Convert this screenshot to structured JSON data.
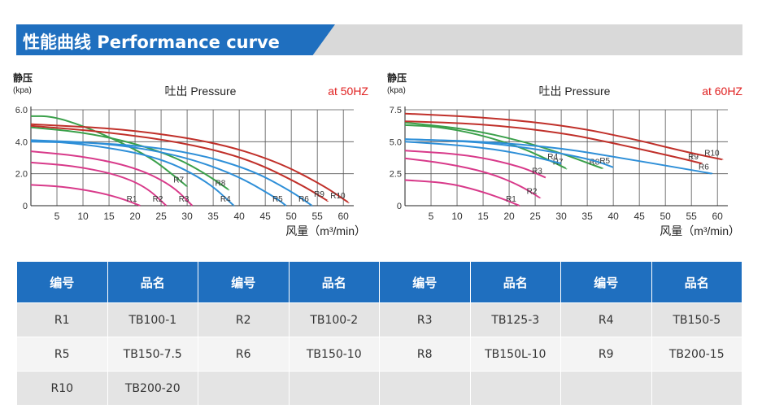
{
  "header": {
    "title": "性能曲线 Performance curve"
  },
  "table": {
    "headers": [
      "编号",
      "品名",
      "编号",
      "品名",
      "编号",
      "品名",
      "编号",
      "品名"
    ],
    "rows": [
      [
        "R1",
        "TB100-1",
        "R2",
        "TB100-2",
        "R3",
        "TB125-3",
        "R4",
        "TB150-5"
      ],
      [
        "R5",
        "TB150-7.5",
        "R6",
        "TB150-10",
        "R8",
        "TB150L-10",
        "R9",
        "TB200-15"
      ],
      [
        "R10",
        "TB200-20",
        "",
        "",
        "",
        "",
        "",
        ""
      ]
    ]
  },
  "chart_data": [
    {
      "type": "line",
      "title": "吐出 Pressure",
      "freq_label": "at 50HZ",
      "ylabel": "静压",
      "yunit": "(kpa)",
      "xlabel": "风量（m³/min）",
      "x_ticks": [
        5,
        10,
        15,
        20,
        25,
        30,
        35,
        40,
        45,
        50,
        55,
        60
      ],
      "y_ticks": [
        "0",
        "2.0",
        "4.0",
        "6.0"
      ],
      "xlim": [
        0,
        62
      ],
      "ylim": [
        0,
        6
      ],
      "grid": true,
      "series": [
        {
          "name": "R1",
          "color": "#d83a8a",
          "points": [
            [
              0,
              1.3
            ],
            [
              6,
              1.2
            ],
            [
              12,
              0.9
            ],
            [
              17,
              0.5
            ],
            [
              21,
              0
            ]
          ]
        },
        {
          "name": "R2",
          "color": "#d83a8a",
          "points": [
            [
              0,
              2.7
            ],
            [
              8,
              2.5
            ],
            [
              16,
              2.0
            ],
            [
              22,
              1.2
            ],
            [
              26,
              0
            ]
          ]
        },
        {
          "name": "R3",
          "color": "#d83a8a",
          "points": [
            [
              0,
              3.4
            ],
            [
              10,
              3.1
            ],
            [
              20,
              2.4
            ],
            [
              27,
              1.3
            ],
            [
              31,
              0
            ]
          ]
        },
        {
          "name": "R7",
          "color": "#3aa04a",
          "points": [
            [
              0,
              5.6
            ],
            [
              4,
              5.6
            ],
            [
              10,
              5.0
            ],
            [
              17,
              4.0
            ],
            [
              23,
              3.0
            ],
            [
              27,
              2.0
            ],
            [
              30,
              1.2
            ]
          ]
        },
        {
          "name": "R4",
          "color": "#2e8fd8",
          "points": [
            [
              0,
              4.1
            ],
            [
              12,
              3.8
            ],
            [
              25,
              3.0
            ],
            [
              34,
              1.5
            ],
            [
              39,
              0
            ]
          ]
        },
        {
          "name": "R8",
          "color": "#3aa04a",
          "points": [
            [
              0,
              4.9
            ],
            [
              10,
              4.6
            ],
            [
              20,
              3.9
            ],
            [
              28,
              3.0
            ],
            [
              34,
              1.9
            ],
            [
              38,
              1.0
            ]
          ]
        },
        {
          "name": "R5",
          "color": "#2e8fd8",
          "points": [
            [
              0,
              4.1
            ],
            [
              15,
              3.9
            ],
            [
              28,
              3.2
            ],
            [
              39,
              2.0
            ],
            [
              47,
              0.5
            ],
            [
              49,
              0
            ]
          ]
        },
        {
          "name": "R6",
          "color": "#2e8fd8",
          "points": [
            [
              0,
              4.0
            ],
            [
              16,
              3.9
            ],
            [
              30,
              3.4
            ],
            [
              42,
              2.3
            ],
            [
              50,
              0.9
            ],
            [
              54,
              0
            ]
          ]
        },
        {
          "name": "R9",
          "color": "#c0302a",
          "points": [
            [
              0,
              5.0
            ],
            [
              15,
              4.6
            ],
            [
              30,
              3.9
            ],
            [
              42,
              2.9
            ],
            [
              52,
              1.3
            ],
            [
              57,
              0.3
            ]
          ]
        },
        {
          "name": "R10",
          "color": "#c0302a",
          "points": [
            [
              0,
              5.1
            ],
            [
              18,
              4.8
            ],
            [
              35,
              4.0
            ],
            [
              47,
              2.8
            ],
            [
              56,
              1.3
            ],
            [
              61,
              0.2
            ]
          ]
        }
      ]
    },
    {
      "type": "line",
      "title": "吐出 Pressure",
      "freq_label": "at 60HZ",
      "ylabel": "静压",
      "yunit": "(kpa)",
      "xlabel": "风量（m³/min）",
      "x_ticks": [
        5,
        10,
        15,
        20,
        25,
        30,
        35,
        40,
        45,
        50,
        55,
        60
      ],
      "y_ticks": [
        "0",
        "2.5",
        "5.0",
        "7.5"
      ],
      "xlim": [
        0,
        62
      ],
      "ylim": [
        0,
        7.5
      ],
      "grid": true,
      "series": [
        {
          "name": "R1",
          "color": "#d83a8a",
          "points": [
            [
              0,
              2.0
            ],
            [
              8,
              1.8
            ],
            [
              14,
              1.2
            ],
            [
              19,
              0.5
            ],
            [
              22,
              0
            ]
          ]
        },
        {
          "name": "R2",
          "color": "#d83a8a",
          "points": [
            [
              0,
              3.7
            ],
            [
              8,
              3.3
            ],
            [
              16,
              2.6
            ],
            [
              22,
              1.6
            ],
            [
              26,
              0.6
            ]
          ]
        },
        {
          "name": "R3",
          "color": "#d83a8a",
          "points": [
            [
              0,
              4.3
            ],
            [
              12,
              4.0
            ],
            [
              22,
              3.1
            ],
            [
              27,
              2.2
            ]
          ]
        },
        {
          "name": "R7",
          "color": "#3aa04a",
          "points": [
            [
              0,
              6.3
            ],
            [
              6,
              6.2
            ],
            [
              14,
              5.6
            ],
            [
              22,
              4.6
            ],
            [
              28,
              3.5
            ],
            [
              31,
              2.9
            ]
          ]
        },
        {
          "name": "R4",
          "color": "#2e8fd8",
          "points": [
            [
              0,
              5.0
            ],
            [
              12,
              4.7
            ],
            [
              22,
              4.1
            ],
            [
              30,
              3.3
            ]
          ]
        },
        {
          "name": "R8",
          "color": "#3aa04a",
          "points": [
            [
              0,
              6.5
            ],
            [
              12,
              6.0
            ],
            [
              22,
              5.1
            ],
            [
              30,
              4.1
            ],
            [
              36,
              3.2
            ],
            [
              38,
              2.9
            ]
          ]
        },
        {
          "name": "R5",
          "color": "#2e8fd8",
          "points": [
            [
              0,
              5.2
            ],
            [
              14,
              5.0
            ],
            [
              26,
              4.4
            ],
            [
              36,
              3.6
            ],
            [
              40,
              3.0
            ]
          ]
        },
        {
          "name": "R6",
          "color": "#2e8fd8",
          "points": [
            [
              0,
              5.2
            ],
            [
              16,
              5.0
            ],
            [
              30,
              4.5
            ],
            [
              42,
              3.7
            ],
            [
              52,
              3.0
            ],
            [
              59,
              2.5
            ]
          ]
        },
        {
          "name": "R9",
          "color": "#c0302a",
          "points": [
            [
              0,
              6.6
            ],
            [
              15,
              6.4
            ],
            [
              30,
              5.7
            ],
            [
              40,
              4.9
            ],
            [
              52,
              3.8
            ],
            [
              57,
              3.3
            ]
          ]
        },
        {
          "name": "R10",
          "color": "#c0302a",
          "points": [
            [
              0,
              7.2
            ],
            [
              16,
              6.9
            ],
            [
              32,
              6.2
            ],
            [
              44,
              5.2
            ],
            [
              54,
              4.2
            ],
            [
              61,
              3.6
            ]
          ]
        }
      ]
    }
  ]
}
